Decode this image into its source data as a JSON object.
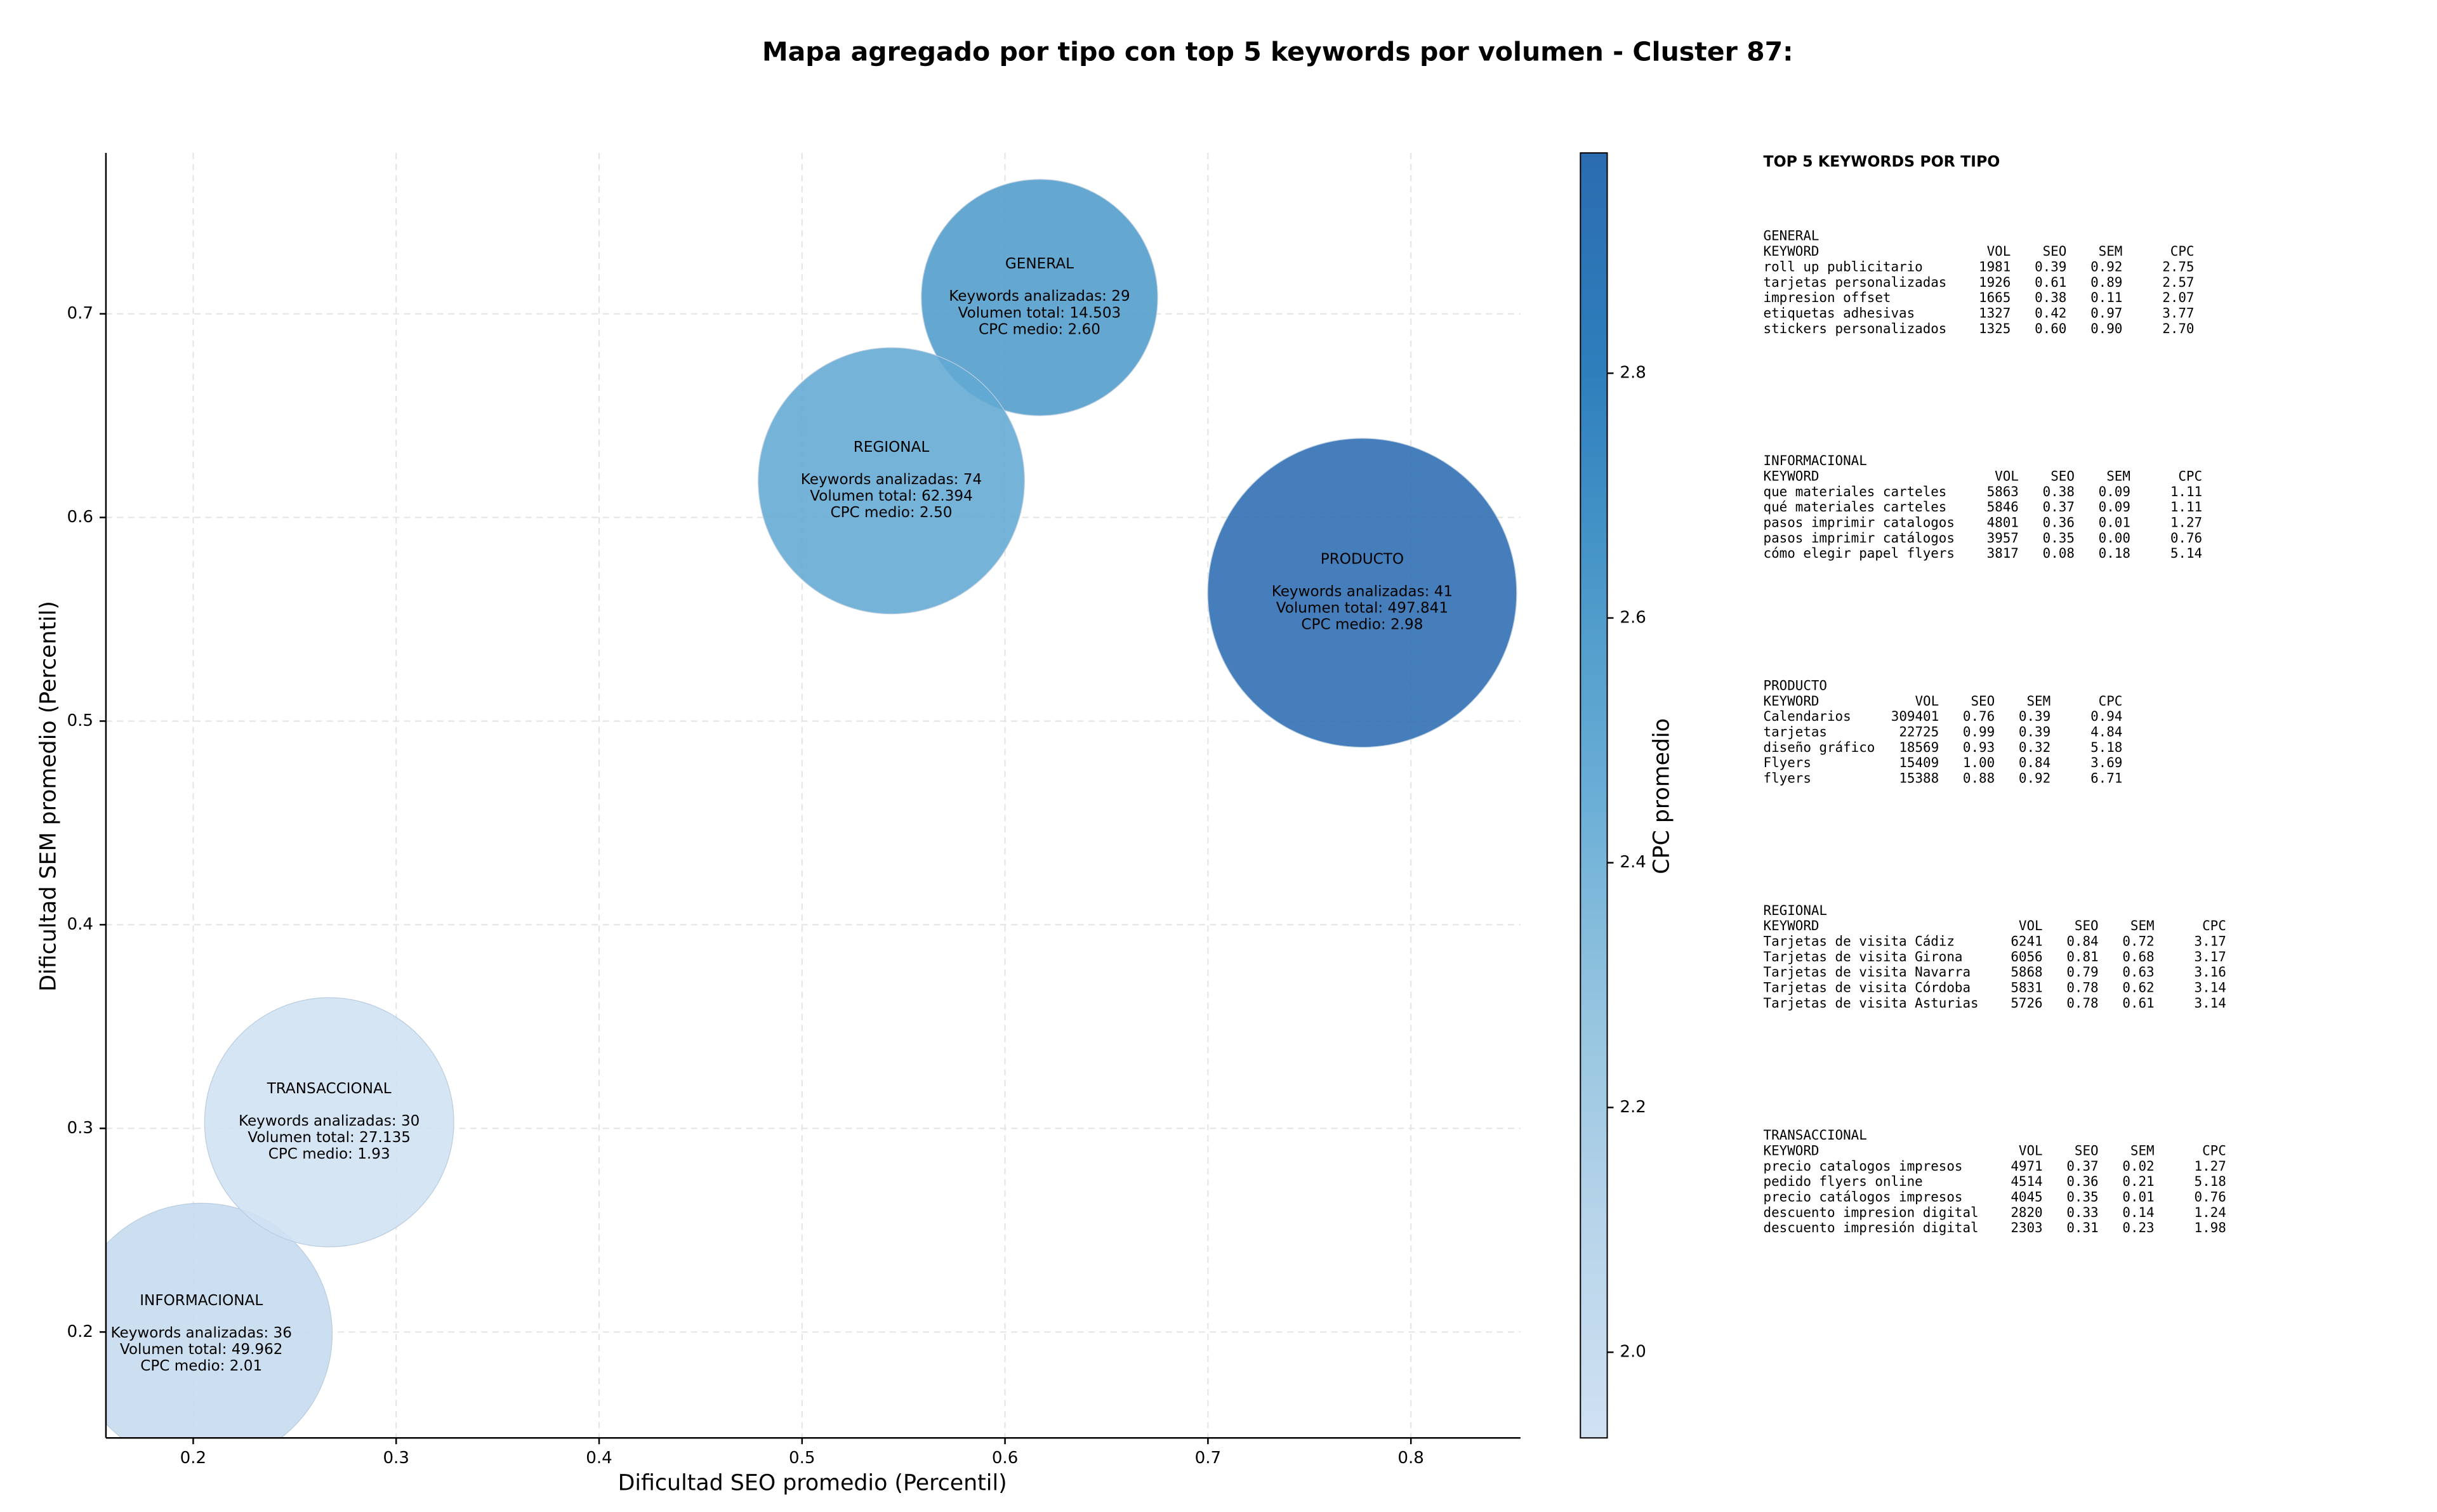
{
  "chart_data": {
    "type": "bubble",
    "title": "Mapa agregado por tipo con top 5 keywords por volumen - Cluster 87:",
    "xlabel": "Dificultad SEO promedio (Percentil)",
    "ylabel": "Dificultad SEM promedio (Percentil)",
    "colorbar_label": "CPC promedio",
    "xlim": [
      0.157,
      0.854
    ],
    "ylim": [
      0.148,
      0.779
    ],
    "xticks": [
      0.2,
      0.3,
      0.4,
      0.5,
      0.6,
      0.7,
      0.8
    ],
    "yticks": [
      0.2,
      0.3,
      0.4,
      0.5,
      0.6,
      0.7
    ],
    "clim": [
      1.93,
      2.98
    ],
    "cticks": [
      {
        "value": 2,
        "label": "2.0"
      },
      2.2,
      2.4,
      2.6,
      2.8
    ],
    "colormap": [
      "#d0e1f2",
      "#b7d4ea",
      "#94c4df",
      "#6aaed6",
      "#4a98c9",
      "#2e7ebc",
      "#2b6cb0"
    ],
    "grid": true,
    "series": [
      {
        "name": "GENERAL",
        "x": 0.617,
        "y": 0.708,
        "keywords": 29,
        "volume": 14503,
        "cpc": 2.6,
        "labels": [
          "Keywords analizadas: 29",
          "Volumen total: 14.503",
          "CPC medio: 2.60"
        ]
      },
      {
        "name": "INFORMACIONAL",
        "x": 0.204,
        "y": 0.199,
        "keywords": 36,
        "volume": 49962,
        "cpc": 2.01,
        "labels": [
          "Keywords analizadas: 36",
          "Volumen total: 49.962",
          "CPC medio: 2.01"
        ]
      },
      {
        "name": "PRODUCTO",
        "x": 0.776,
        "y": 0.563,
        "keywords": 41,
        "volume": 497841,
        "cpc": 2.98,
        "labels": [
          "Keywords analizadas: 41",
          "Volumen total: 497.841",
          "CPC medio: 2.98"
        ]
      },
      {
        "name": "REGIONAL",
        "x": 0.544,
        "y": 0.618,
        "keywords": 74,
        "volume": 62394,
        "cpc": 2.5,
        "labels": [
          "Keywords analizadas: 74",
          "Volumen total: 62.394",
          "CPC medio: 2.50"
        ]
      },
      {
        "name": "TRANSACCIONAL",
        "x": 0.267,
        "y": 0.303,
        "keywords": 30,
        "volume": 27135,
        "cpc": 1.93,
        "labels": [
          "Keywords analizadas: 30",
          "Volumen total: 27.135",
          "CPC medio: 1.93"
        ]
      }
    ]
  },
  "side_panel": {
    "title": "TOP 5 KEYWORDS POR TIPO",
    "columns": [
      "KEYWORD",
      "VOL",
      "SEO",
      "SEM",
      "CPC"
    ],
    "tables": [
      {
        "name": "GENERAL",
        "rows": [
          [
            "roll up publicitario",
            "1981",
            "0.39",
            "0.92",
            "2.75"
          ],
          [
            "tarjetas personalizadas",
            "1926",
            "0.61",
            "0.89",
            "2.57"
          ],
          [
            "impresion offset",
            "1665",
            "0.38",
            "0.11",
            "2.07"
          ],
          [
            "etiquetas adhesivas",
            "1327",
            "0.42",
            "0.97",
            "3.77"
          ],
          [
            "stickers personalizados",
            "1325",
            "0.60",
            "0.90",
            "2.70"
          ]
        ]
      },
      {
        "name": "INFORMACIONAL",
        "rows": [
          [
            "que materiales carteles",
            "5863",
            "0.38",
            "0.09",
            "1.11"
          ],
          [
            "qué materiales carteles",
            "5846",
            "0.37",
            "0.09",
            "1.11"
          ],
          [
            "pasos imprimir catalogos",
            "4801",
            "0.36",
            "0.01",
            "1.27"
          ],
          [
            "pasos imprimir catálogos",
            "3957",
            "0.35",
            "0.00",
            "0.76"
          ],
          [
            "cómo elegir papel flyers",
            "3817",
            "0.08",
            "0.18",
            "5.14"
          ]
        ]
      },
      {
        "name": "PRODUCTO",
        "rows": [
          [
            "Calendarios",
            "309401",
            "0.76",
            "0.39",
            "0.94"
          ],
          [
            "tarjetas",
            "22725",
            "0.99",
            "0.39",
            "4.84"
          ],
          [
            "diseño gráfico",
            "18569",
            "0.93",
            "0.32",
            "5.18"
          ],
          [
            "Flyers",
            "15409",
            "1.00",
            "0.84",
            "3.69"
          ],
          [
            "flyers",
            "15388",
            "0.88",
            "0.92",
            "6.71"
          ]
        ]
      },
      {
        "name": "REGIONAL",
        "rows": [
          [
            "Tarjetas de visita Cádiz",
            "6241",
            "0.84",
            "0.72",
            "3.17"
          ],
          [
            "Tarjetas de visita Girona",
            "6056",
            "0.81",
            "0.68",
            "3.17"
          ],
          [
            "Tarjetas de visita Navarra",
            "5868",
            "0.79",
            "0.63",
            "3.16"
          ],
          [
            "Tarjetas de visita Córdoba",
            "5831",
            "0.78",
            "0.62",
            "3.14"
          ],
          [
            "Tarjetas de visita Asturias",
            "5726",
            "0.78",
            "0.61",
            "3.14"
          ]
        ]
      },
      {
        "name": "TRANSACCIONAL",
        "rows": [
          [
            "precio catalogos impresos",
            "4971",
            "0.37",
            "0.02",
            "1.27"
          ],
          [
            "pedido flyers online",
            "4514",
            "0.36",
            "0.21",
            "5.18"
          ],
          [
            "precio catálogos impresos",
            "4045",
            "0.35",
            "0.01",
            "0.76"
          ],
          [
            "descuento impresion digital",
            "2820",
            "0.33",
            "0.14",
            "1.24"
          ],
          [
            "descuento impresión digital",
            "2303",
            "0.31",
            "0.23",
            "1.98"
          ]
        ]
      }
    ]
  }
}
